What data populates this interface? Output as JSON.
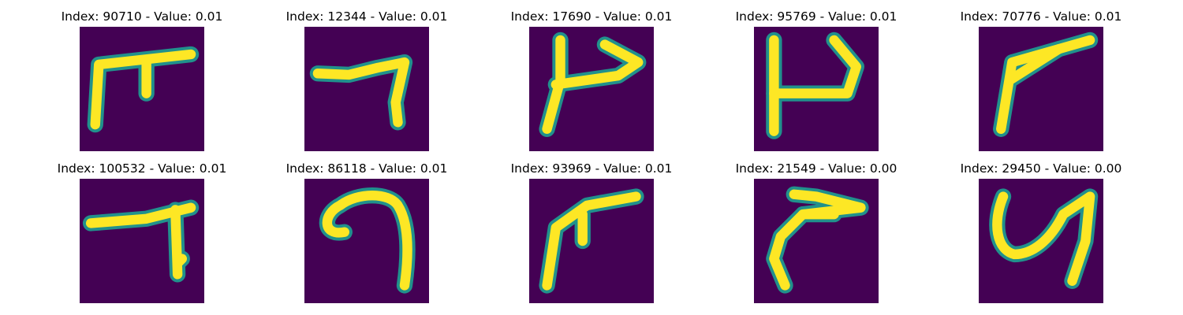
{
  "colors": {
    "background": "#440154",
    "stroke": "#fde725",
    "edge": "#21918c"
  },
  "panels": [
    {
      "title": "Index: 90710 - Value: 0.01"
    },
    {
      "title": "Index: 12344 - Value: 0.01"
    },
    {
      "title": "Index: 17690 - Value: 0.01"
    },
    {
      "title": "Index: 95769 - Value: 0.01"
    },
    {
      "title": "Index: 70776 - Value: 0.01"
    },
    {
      "title": "Index: 100532 - Value: 0.01"
    },
    {
      "title": "Index: 86118 - Value: 0.01"
    },
    {
      "title": "Index: 93969 - Value: 0.01"
    },
    {
      "title": "Index: 21549 - Value: 0.00"
    },
    {
      "title": "Index: 29450 - Value: 0.00"
    }
  ]
}
